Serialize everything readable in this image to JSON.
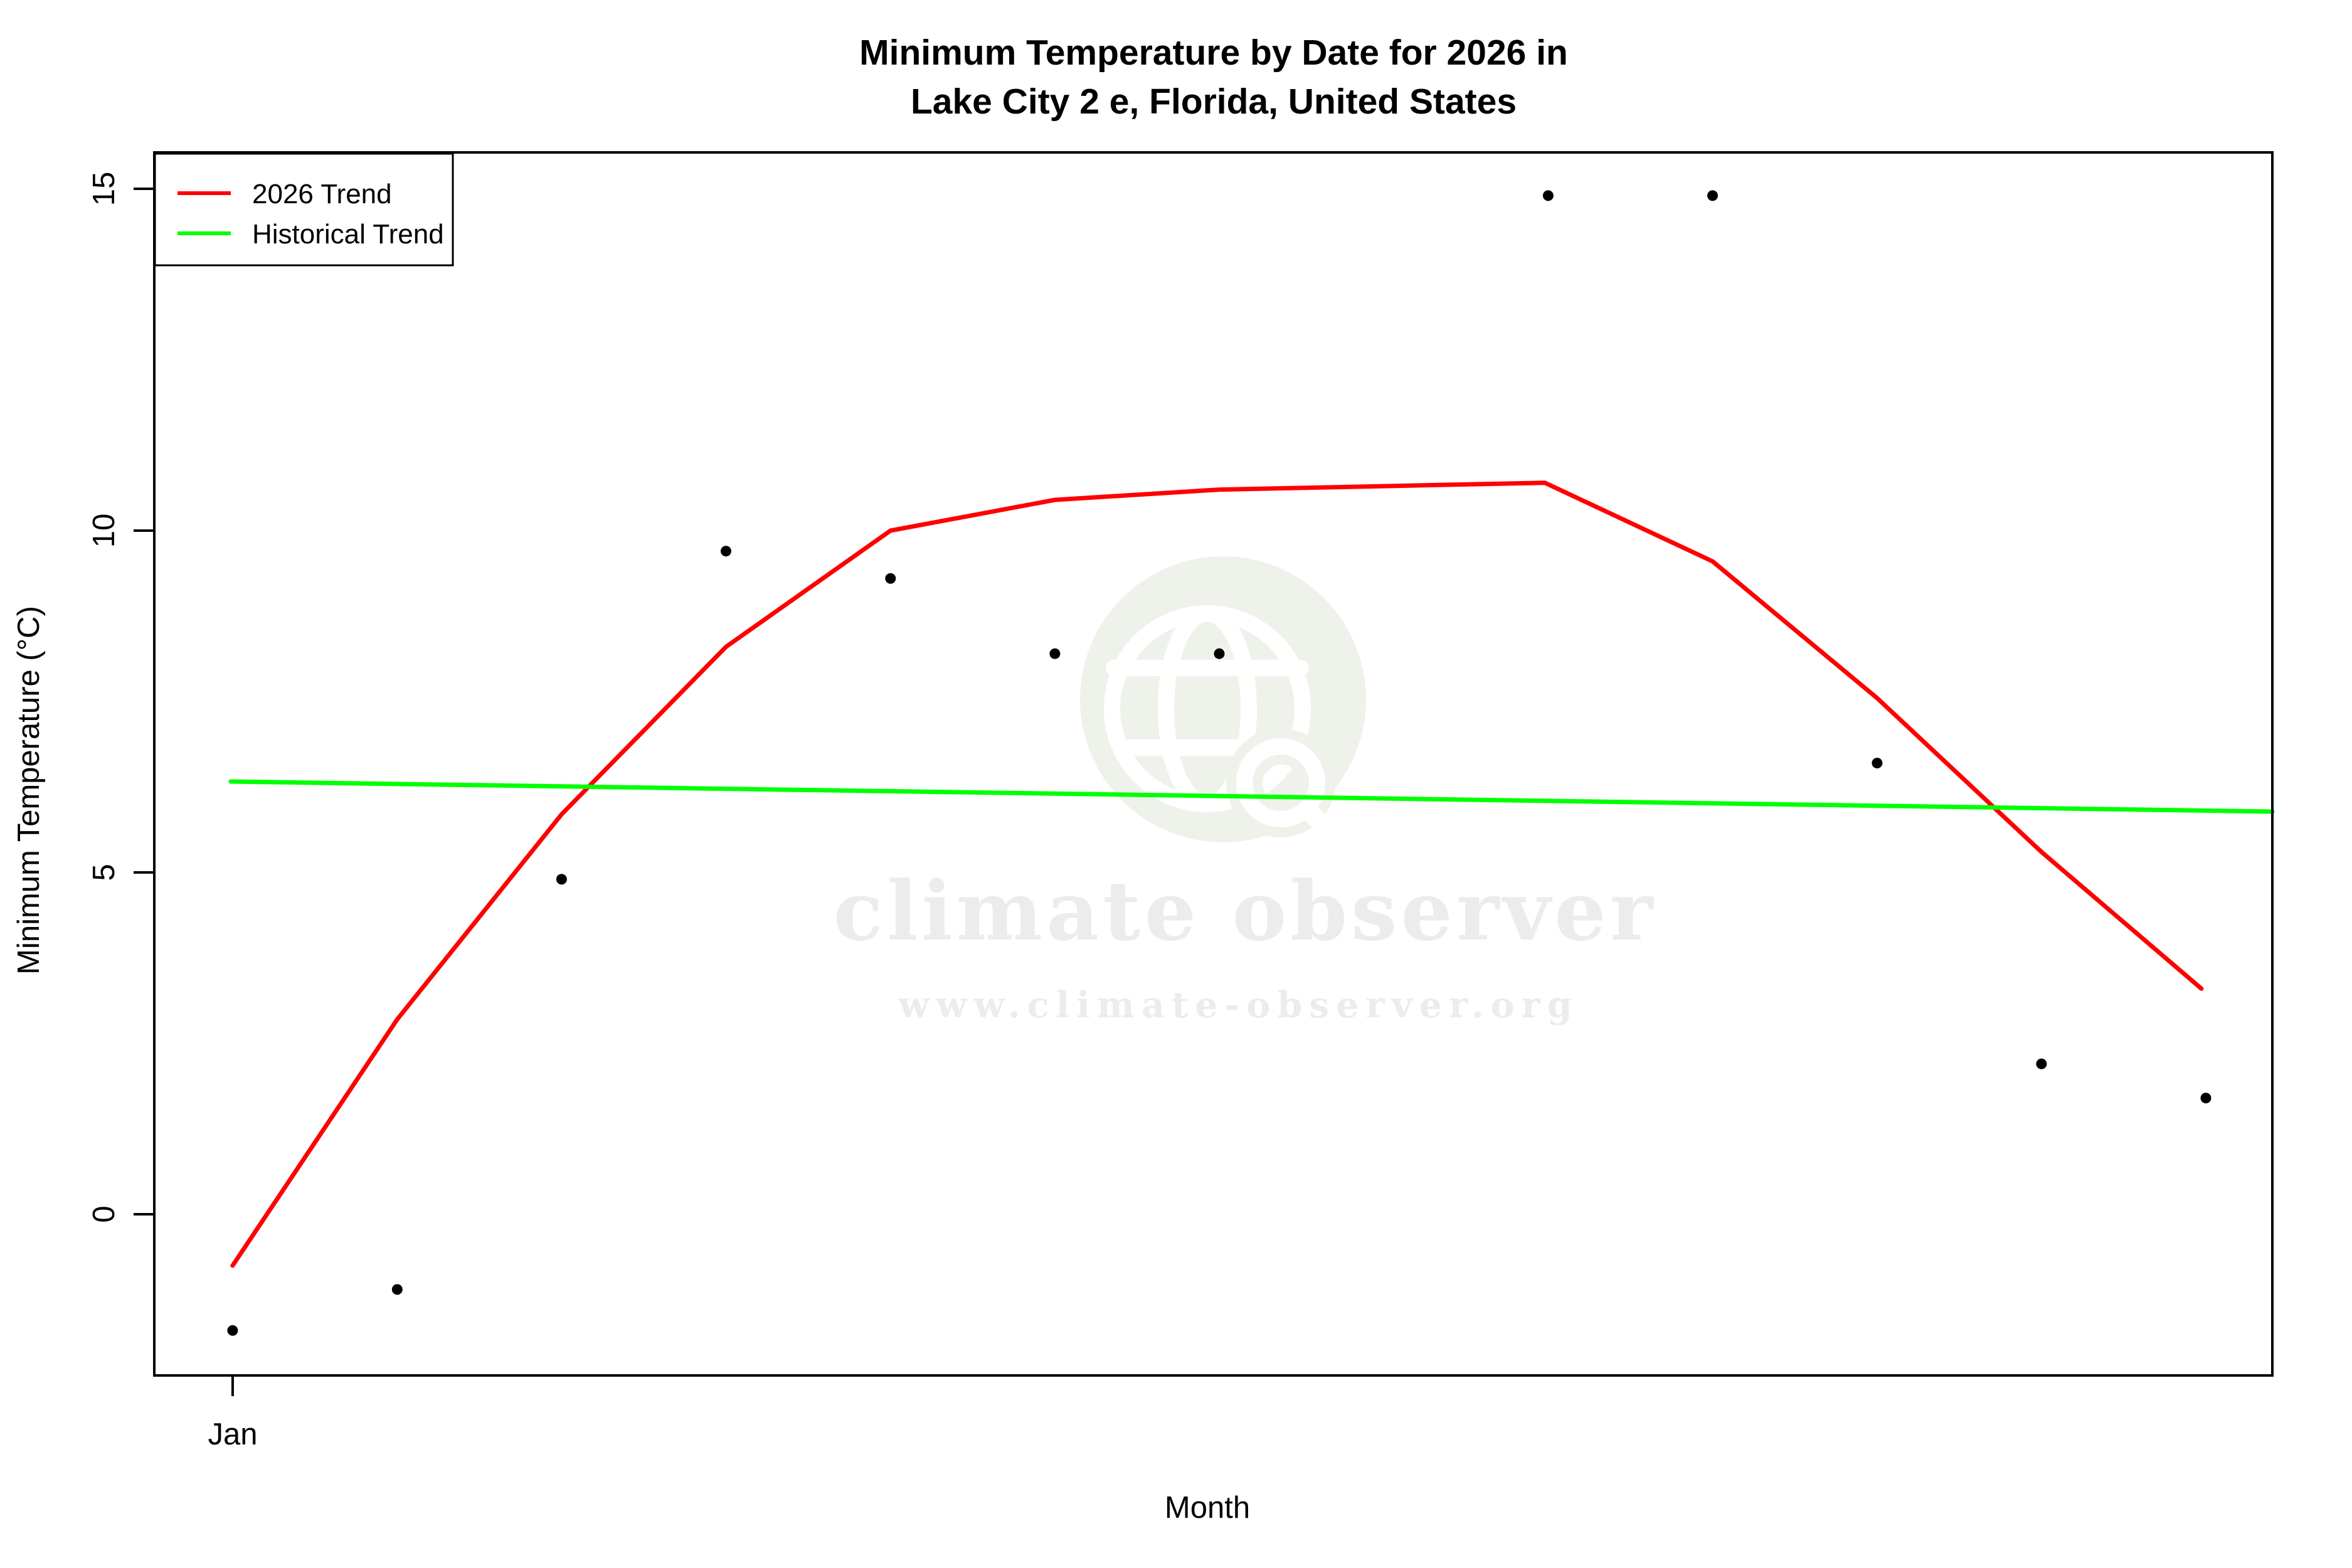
{
  "chart_data": {
    "type": "scatter",
    "title_lines": [
      "Minimum Temperature by Date for 2026 in",
      "Lake City 2 e, Florida, United States"
    ],
    "xlabel": "Month",
    "ylabel": "Minimum Temperature (°C)",
    "x_axis": {
      "ticks": [
        {
          "label": "Jan",
          "frac": 0.037
        }
      ],
      "note": "only January is labeled; 13 equally spaced date slots span the axis"
    },
    "y_axis": {
      "ticks": [
        {
          "label": "0",
          "value": 0
        },
        {
          "label": "5",
          "value": 5
        },
        {
          "label": "10",
          "value": 10
        },
        {
          "label": "15",
          "value": 15
        }
      ],
      "range": [
        -2.35,
        15.5
      ],
      "grid": "off"
    },
    "legend": {
      "position": "top-left",
      "entries": [
        {
          "label": "2026 Trend",
          "color": "#ff0000"
        },
        {
          "label": "Historical Trend",
          "color": "#00ff00"
        }
      ]
    },
    "points": {
      "color": "#000000",
      "data": [
        {
          "x_frac": 0.037,
          "temp_c": -1.7
        },
        {
          "x_frac": 0.1147,
          "temp_c": -1.1
        },
        {
          "x_frac": 0.1923,
          "temp_c": 4.9
        },
        {
          "x_frac": 0.2699,
          "temp_c": 9.7
        },
        {
          "x_frac": 0.3476,
          "temp_c": 9.3
        },
        {
          "x_frac": 0.4252,
          "temp_c": 8.2
        },
        {
          "x_frac": 0.5028,
          "temp_c": 8.2
        },
        {
          "x_frac": 0.6581,
          "temp_c": 14.9
        },
        {
          "x_frac": 0.7357,
          "temp_c": 14.9
        },
        {
          "x_frac": 0.8134,
          "temp_c": 6.6
        },
        {
          "x_frac": 0.891,
          "temp_c": 2.2
        },
        {
          "x_frac": 0.9686,
          "temp_c": 1.7
        }
      ]
    },
    "series": [
      {
        "name": "2026 Trend",
        "type": "line",
        "color": "#ff0000",
        "data": [
          {
            "x_frac": 0.037,
            "temp_c": -0.75
          },
          {
            "x_frac": 0.1147,
            "temp_c": 2.85
          },
          {
            "x_frac": 0.1923,
            "temp_c": 5.85
          },
          {
            "x_frac": 0.2699,
            "temp_c": 8.3
          },
          {
            "x_frac": 0.3476,
            "temp_c": 10.0
          },
          {
            "x_frac": 0.4252,
            "temp_c": 10.45
          },
          {
            "x_frac": 0.5028,
            "temp_c": 10.6
          },
          {
            "x_frac": 0.5805,
            "temp_c": 10.65
          },
          {
            "x_frac": 0.6565,
            "temp_c": 10.7
          },
          {
            "x_frac": 0.7357,
            "temp_c": 9.55
          },
          {
            "x_frac": 0.8134,
            "temp_c": 7.55
          },
          {
            "x_frac": 0.891,
            "temp_c": 5.3
          },
          {
            "x_frac": 0.9665,
            "temp_c": 3.3
          }
        ]
      },
      {
        "name": "Historical Trend",
        "type": "line",
        "color": "#00ff00",
        "data": [
          {
            "x_frac": 0.0361,
            "temp_c": 6.33
          },
          {
            "x_frac": 1.0,
            "temp_c": 5.89
          }
        ]
      }
    ],
    "watermark": {
      "text": "climate observer",
      "url": "www.climate-observer.org",
      "text_color": "#ececec",
      "globe_tint": "#eef2eb",
      "globe_line_color": "#ffffff"
    }
  }
}
